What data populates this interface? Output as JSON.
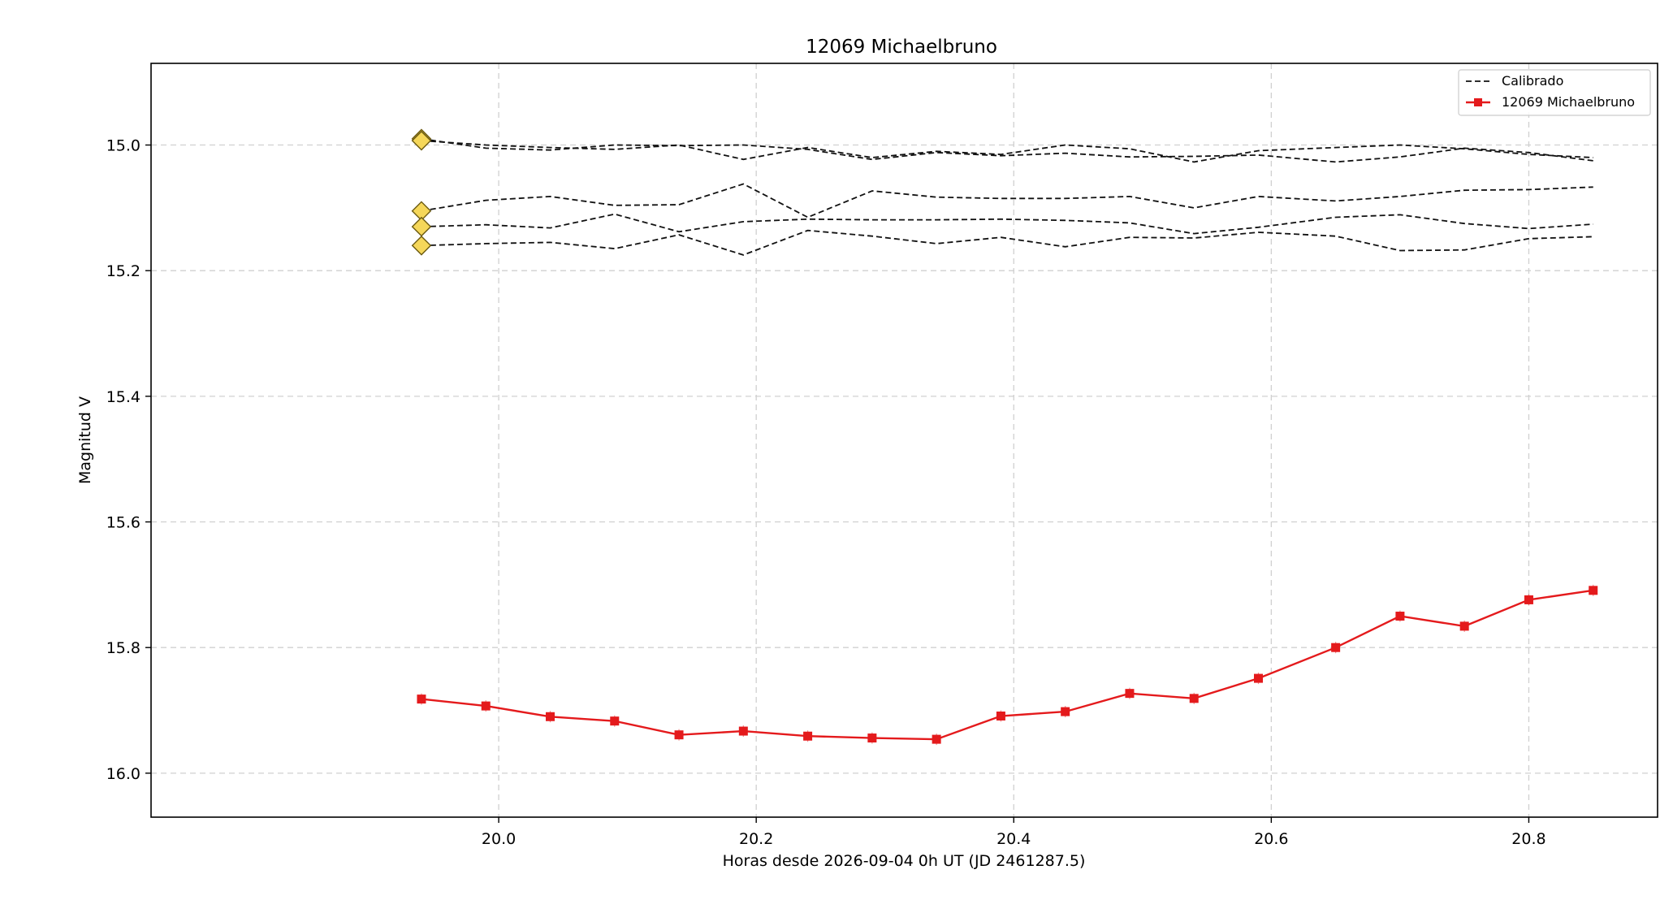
{
  "chart_data": {
    "type": "line",
    "title": "12069 Michaelbruno",
    "xlabel": "Horas desde 2026-09-04 0h UT (JD 2461287.5)",
    "ylabel": "Magnitud V",
    "xlim": [
      19.73,
      20.9
    ],
    "ylim": [
      16.07,
      14.87
    ],
    "y_inverted": true,
    "grid": true,
    "legend_position": "top-right",
    "xticks": [
      "20.0",
      "20.2",
      "20.4",
      "20.6",
      "20.8"
    ],
    "yticks": [
      "15.0",
      "15.2",
      "15.4",
      "15.6",
      "15.8",
      "16.0"
    ],
    "x": [
      19.94,
      19.99,
      20.04,
      20.09,
      20.14,
      20.19,
      20.24,
      20.29,
      20.34,
      20.39,
      20.44,
      20.49,
      20.54,
      20.59,
      20.65,
      20.7,
      20.75,
      20.8,
      20.85
    ],
    "legend": [
      {
        "label": "Calibrado",
        "style": "dashed",
        "color": "#111111"
      },
      {
        "label": "12069 Michaelbruno",
        "style": "solid-marker",
        "color": "#e41a1c"
      }
    ],
    "comparison_marker_color": "#f5d75a",
    "series": [
      {
        "values": [
          14.99,
          15.005,
          15.008,
          15.0,
          15.001,
          15.0,
          15.007,
          15.023,
          15.012,
          15.017,
          15.013,
          15.019,
          15.018,
          15.016,
          15.027,
          15.019,
          15.005,
          15.012,
          15.025
        ],
        "style": "dashed",
        "color": "#111111"
      },
      {
        "values": [
          14.993,
          15.0,
          15.004,
          15.007,
          15.0,
          15.023,
          15.004,
          15.02,
          15.01,
          15.015,
          15.0,
          15.006,
          15.027,
          15.009,
          15.004,
          15.0,
          15.006,
          15.015,
          15.02
        ],
        "style": "dashed",
        "color": "#111111"
      },
      {
        "values": [
          15.105,
          15.088,
          15.082,
          15.096,
          15.095,
          15.062,
          15.115,
          15.073,
          15.083,
          15.085,
          15.085,
          15.082,
          15.1,
          15.082,
          15.089,
          15.082,
          15.072,
          15.071,
          15.067
        ],
        "style": "dashed",
        "color": "#111111"
      },
      {
        "values": [
          15.13,
          15.127,
          15.132,
          15.11,
          15.138,
          15.122,
          15.118,
          15.119,
          15.119,
          15.118,
          15.12,
          15.124,
          15.141,
          15.131,
          15.115,
          15.111,
          15.125,
          15.133,
          15.126
        ],
        "style": "dashed",
        "color": "#111111"
      },
      {
        "values": [
          15.16,
          15.157,
          15.155,
          15.165,
          15.143,
          15.175,
          15.136,
          15.145,
          15.157,
          15.147,
          15.162,
          15.147,
          15.148,
          15.139,
          15.145,
          15.168,
          15.167,
          15.149,
          15.146
        ],
        "style": "dashed",
        "color": "#111111"
      },
      {
        "name": "12069 Michaelbruno",
        "values": [
          15.882,
          15.893,
          15.91,
          15.917,
          15.939,
          15.933,
          15.941,
          15.944,
          15.946,
          15.909,
          15.902,
          15.873,
          15.881,
          15.849,
          15.8,
          15.75,
          15.766,
          15.724,
          15.709
        ],
        "style": "solid-marker",
        "color": "#e41a1c"
      }
    ]
  }
}
